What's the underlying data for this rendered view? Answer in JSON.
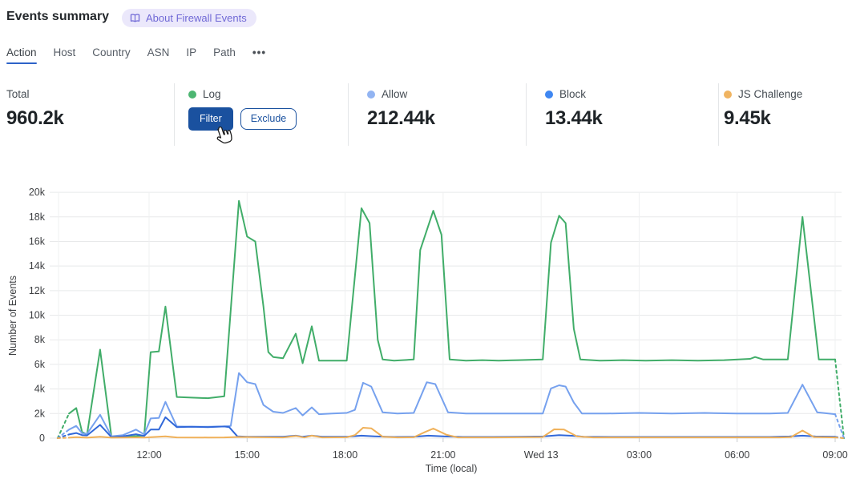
{
  "header": {
    "title": "Events summary",
    "about_badge": {
      "label": "About Firewall Events",
      "icon": "book-icon"
    }
  },
  "tabs": {
    "items": [
      {
        "label": "Action",
        "active": true
      },
      {
        "label": "Host",
        "active": false
      },
      {
        "label": "Country",
        "active": false
      },
      {
        "label": "ASN",
        "active": false
      },
      {
        "label": "IP",
        "active": false
      },
      {
        "label": "Path",
        "active": false
      },
      {
        "label": "•••",
        "active": false,
        "icon": "ellipsis-icon"
      }
    ]
  },
  "stats": {
    "total": {
      "label": "Total",
      "value": "960.2k"
    },
    "actions": [
      {
        "label": "Log",
        "color": "#4db672",
        "value": "",
        "hovered": true,
        "buttons": {
          "filter": "Filter",
          "exclude": "Exclude"
        }
      },
      {
        "label": "Allow",
        "color": "#92b4f2",
        "value": "212.44k"
      },
      {
        "label": "Block",
        "color": "#3f87f2",
        "value": "13.44k"
      },
      {
        "label": "JS Challenge",
        "color": "#f0b461",
        "value": "9.45k"
      }
    ]
  },
  "cursor": {
    "icon": "hand-pointer-icon",
    "over": "filter-button"
  },
  "chart_data": {
    "type": "line",
    "title": "",
    "xlabel": "Time (local)",
    "ylabel": "Number of Events",
    "y_unit": "events",
    "x_unit": "hours since 09:00 on first day (Tue); 15 = midnight Wed 13, 24 = 09:00 Wed",
    "ylim": [
      0,
      20000
    ],
    "grid": true,
    "legend_position": "in stats row above chart",
    "incomplete_data_edges": "first and last segments of every series are dashed",
    "y_ticks": [
      {
        "v": 0,
        "label": "0"
      },
      {
        "v": 2000,
        "label": "2k"
      },
      {
        "v": 4000,
        "label": "4k"
      },
      {
        "v": 6000,
        "label": "6k"
      },
      {
        "v": 8000,
        "label": "8k"
      },
      {
        "v": 10000,
        "label": "10k"
      },
      {
        "v": 12000,
        "label": "12k"
      },
      {
        "v": 14000,
        "label": "14k"
      },
      {
        "v": 16000,
        "label": "16k"
      },
      {
        "v": 18000,
        "label": "18k"
      },
      {
        "v": 20000,
        "label": "20k"
      }
    ],
    "x_ticks": [
      {
        "t": 3,
        "label": "12:00"
      },
      {
        "t": 6,
        "label": "15:00"
      },
      {
        "t": 9,
        "label": "18:00"
      },
      {
        "t": 12,
        "label": "21:00"
      },
      {
        "t": 15,
        "label": "Wed 13"
      },
      {
        "t": 18,
        "label": "03:00"
      },
      {
        "t": 21,
        "label": "06:00"
      },
      {
        "t": 24,
        "label": "09:00"
      }
    ],
    "series": [
      {
        "name": "Log",
        "color": "#41ad69",
        "dash_head_until": 0.55,
        "dash_tail_from": 24.0,
        "points": [
          [
            0.2,
            0
          ],
          [
            0.55,
            2000
          ],
          [
            0.77,
            2450
          ],
          [
            0.95,
            500
          ],
          [
            1.1,
            300
          ],
          [
            1.5,
            7200
          ],
          [
            1.85,
            80
          ],
          [
            2.2,
            100
          ],
          [
            2.85,
            200
          ],
          [
            3.05,
            7000
          ],
          [
            3.3,
            7050
          ],
          [
            3.5,
            10700
          ],
          [
            3.85,
            3350
          ],
          [
            4.3,
            3300
          ],
          [
            4.8,
            3250
          ],
          [
            5.3,
            3400
          ],
          [
            5.75,
            19300
          ],
          [
            6.0,
            16400
          ],
          [
            6.25,
            16000
          ],
          [
            6.5,
            10700
          ],
          [
            6.65,
            7000
          ],
          [
            6.8,
            6600
          ],
          [
            7.1,
            6500
          ],
          [
            7.49,
            8500
          ],
          [
            7.7,
            6100
          ],
          [
            7.98,
            9100
          ],
          [
            8.2,
            6300
          ],
          [
            8.6,
            6300
          ],
          [
            9.05,
            6300
          ],
          [
            9.5,
            18700
          ],
          [
            9.75,
            17500
          ],
          [
            10.0,
            8000
          ],
          [
            10.15,
            6400
          ],
          [
            10.5,
            6300
          ],
          [
            11.1,
            6400
          ],
          [
            11.3,
            15300
          ],
          [
            11.7,
            18500
          ],
          [
            11.95,
            16550
          ],
          [
            12.2,
            6400
          ],
          [
            12.7,
            6300
          ],
          [
            13.2,
            6350
          ],
          [
            13.7,
            6300
          ],
          [
            14.3,
            6350
          ],
          [
            15.05,
            6400
          ],
          [
            15.3,
            15900
          ],
          [
            15.55,
            18100
          ],
          [
            15.75,
            17500
          ],
          [
            16.0,
            8900
          ],
          [
            16.2,
            6400
          ],
          [
            16.8,
            6300
          ],
          [
            17.5,
            6350
          ],
          [
            18.2,
            6300
          ],
          [
            19.0,
            6350
          ],
          [
            19.8,
            6300
          ],
          [
            20.6,
            6350
          ],
          [
            21.4,
            6450
          ],
          [
            21.55,
            6600
          ],
          [
            21.8,
            6400
          ],
          [
            22.55,
            6400
          ],
          [
            23.0,
            18000
          ],
          [
            23.5,
            6400
          ],
          [
            24.0,
            6400
          ],
          [
            24.27,
            0
          ]
        ]
      },
      {
        "name": "Allow",
        "color": "#76a1ee",
        "dash_head_until": 0.55,
        "dash_tail_from": 24.0,
        "points": [
          [
            0.2,
            0
          ],
          [
            0.55,
            700
          ],
          [
            0.77,
            1000
          ],
          [
            0.95,
            400
          ],
          [
            1.1,
            350
          ],
          [
            1.5,
            1900
          ],
          [
            1.85,
            150
          ],
          [
            2.2,
            250
          ],
          [
            2.6,
            700
          ],
          [
            2.85,
            300
          ],
          [
            3.05,
            1600
          ],
          [
            3.3,
            1650
          ],
          [
            3.5,
            2950
          ],
          [
            3.85,
            950
          ],
          [
            4.3,
            930
          ],
          [
            4.8,
            930
          ],
          [
            5.3,
            950
          ],
          [
            5.5,
            1000
          ],
          [
            5.75,
            5300
          ],
          [
            6.0,
            4550
          ],
          [
            6.25,
            4400
          ],
          [
            6.5,
            2700
          ],
          [
            6.8,
            2150
          ],
          [
            7.1,
            2050
          ],
          [
            7.49,
            2450
          ],
          [
            7.7,
            1850
          ],
          [
            7.98,
            2500
          ],
          [
            8.2,
            1950
          ],
          [
            8.6,
            2000
          ],
          [
            9.05,
            2050
          ],
          [
            9.3,
            2300
          ],
          [
            9.55,
            4500
          ],
          [
            9.8,
            4200
          ],
          [
            10.15,
            2100
          ],
          [
            10.6,
            2000
          ],
          [
            11.1,
            2050
          ],
          [
            11.5,
            4550
          ],
          [
            11.76,
            4400
          ],
          [
            12.15,
            2100
          ],
          [
            12.7,
            2000
          ],
          [
            13.5,
            2000
          ],
          [
            14.3,
            2000
          ],
          [
            15.05,
            2000
          ],
          [
            15.3,
            4050
          ],
          [
            15.55,
            4300
          ],
          [
            15.75,
            4200
          ],
          [
            16.0,
            2900
          ],
          [
            16.25,
            2000
          ],
          [
            17.0,
            2000
          ],
          [
            18.0,
            2050
          ],
          [
            19.0,
            2000
          ],
          [
            20.0,
            2050
          ],
          [
            21.0,
            2000
          ],
          [
            22.0,
            2000
          ],
          [
            22.55,
            2050
          ],
          [
            23.0,
            4350
          ],
          [
            23.45,
            2100
          ],
          [
            24.0,
            1950
          ],
          [
            24.27,
            0
          ]
        ]
      },
      {
        "name": "Block",
        "color": "#3168d9",
        "dash_head_until": 0.55,
        "dash_tail_from": 24.0,
        "points": [
          [
            0.2,
            0
          ],
          [
            0.55,
            300
          ],
          [
            0.77,
            420
          ],
          [
            0.95,
            250
          ],
          [
            1.1,
            220
          ],
          [
            1.5,
            1080
          ],
          [
            1.85,
            80
          ],
          [
            2.2,
            150
          ],
          [
            2.6,
            320
          ],
          [
            2.85,
            180
          ],
          [
            3.05,
            700
          ],
          [
            3.3,
            700
          ],
          [
            3.5,
            1700
          ],
          [
            3.85,
            900
          ],
          [
            4.3,
            930
          ],
          [
            4.8,
            900
          ],
          [
            5.3,
            950
          ],
          [
            5.45,
            900
          ],
          [
            5.7,
            150
          ],
          [
            6.0,
            120
          ],
          [
            6.5,
            110
          ],
          [
            7.1,
            120
          ],
          [
            7.49,
            200
          ],
          [
            7.7,
            110
          ],
          [
            7.98,
            200
          ],
          [
            8.3,
            110
          ],
          [
            9.05,
            110
          ],
          [
            9.5,
            200
          ],
          [
            9.9,
            150
          ],
          [
            10.5,
            100
          ],
          [
            11.1,
            110
          ],
          [
            11.55,
            200
          ],
          [
            12.0,
            150
          ],
          [
            12.6,
            100
          ],
          [
            13.5,
            100
          ],
          [
            14.3,
            110
          ],
          [
            15.05,
            140
          ],
          [
            15.55,
            240
          ],
          [
            16.0,
            190
          ],
          [
            16.3,
            110
          ],
          [
            17.2,
            100
          ],
          [
            18.2,
            100
          ],
          [
            19.2,
            100
          ],
          [
            20.2,
            100
          ],
          [
            21.2,
            100
          ],
          [
            22.0,
            100
          ],
          [
            22.6,
            140
          ],
          [
            23.0,
            200
          ],
          [
            23.4,
            140
          ],
          [
            24.0,
            110
          ],
          [
            24.25,
            0
          ]
        ]
      },
      {
        "name": "JS Challenge",
        "color": "#f0b159",
        "dash_head_until": 0.55,
        "dash_tail_from": 24.0,
        "points": [
          [
            0.2,
            0
          ],
          [
            0.55,
            40
          ],
          [
            0.77,
            80
          ],
          [
            1.1,
            40
          ],
          [
            1.5,
            120
          ],
          [
            1.85,
            40
          ],
          [
            2.6,
            60
          ],
          [
            2.85,
            50
          ],
          [
            3.5,
            150
          ],
          [
            3.85,
            60
          ],
          [
            4.8,
            50
          ],
          [
            5.3,
            60
          ],
          [
            5.75,
            100
          ],
          [
            6.5,
            70
          ],
          [
            7.1,
            60
          ],
          [
            7.49,
            180
          ],
          [
            7.75,
            50
          ],
          [
            7.98,
            200
          ],
          [
            8.3,
            60
          ],
          [
            9.05,
            70
          ],
          [
            9.3,
            250
          ],
          [
            9.55,
            850
          ],
          [
            9.8,
            800
          ],
          [
            10.15,
            120
          ],
          [
            10.6,
            60
          ],
          [
            11.1,
            70
          ],
          [
            11.45,
            500
          ],
          [
            11.7,
            780
          ],
          [
            12.1,
            280
          ],
          [
            12.45,
            60
          ],
          [
            13.5,
            60
          ],
          [
            14.3,
            70
          ],
          [
            15.05,
            90
          ],
          [
            15.4,
            720
          ],
          [
            15.7,
            700
          ],
          [
            16.1,
            140
          ],
          [
            16.6,
            60
          ],
          [
            17.5,
            60
          ],
          [
            18.5,
            60
          ],
          [
            19.5,
            60
          ],
          [
            20.5,
            60
          ],
          [
            21.5,
            60
          ],
          [
            22.3,
            60
          ],
          [
            22.65,
            90
          ],
          [
            23.0,
            620
          ],
          [
            23.35,
            90
          ],
          [
            24.0,
            60
          ],
          [
            24.25,
            0
          ]
        ]
      }
    ]
  }
}
